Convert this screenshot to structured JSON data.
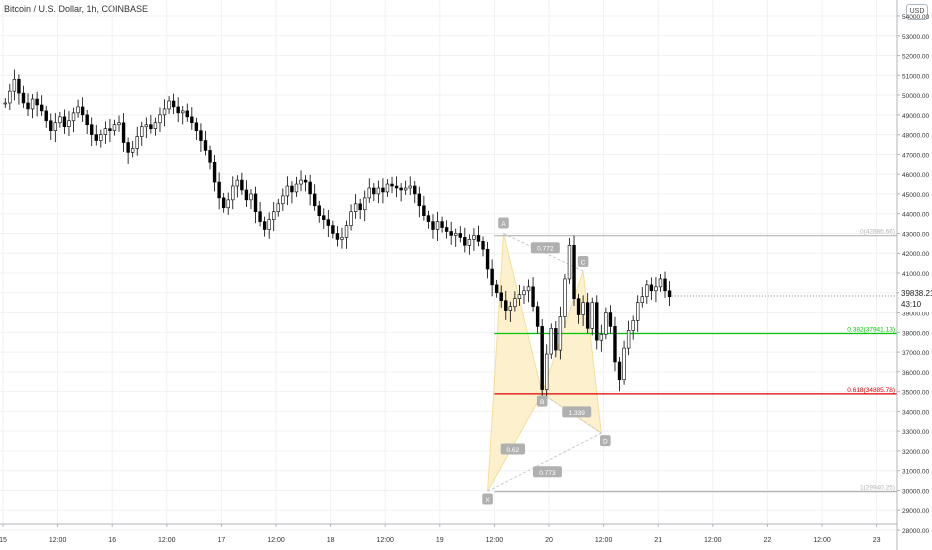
{
  "header": {
    "title": "Bitcoin / U.S. Dollar, 1h, COINBASE",
    "currency_button": "USD"
  },
  "price_badge": {
    "price": "39838.21",
    "countdown": "43:10"
  },
  "chart_data": {
    "type": "candlestick",
    "title": "Bitcoin / U.S. Dollar, 1h, COINBASE",
    "ylim": [
      27800,
      54700
    ],
    "y_ticks": [
      28000,
      29000,
      30000,
      31000,
      32000,
      33000,
      34000,
      35000,
      36000,
      37000,
      38000,
      39000,
      40000,
      41000,
      42000,
      43000,
      44000,
      45000,
      46000,
      47000,
      48000,
      49000,
      50000,
      51000,
      52000,
      53000,
      54000
    ],
    "y_tick_labels": [
      "28000.00",
      "29000.00",
      "30000.00",
      "31000.00",
      "32000.00",
      "33000.00",
      "34000.00",
      "35000.00",
      "36000.00",
      "37000.00",
      "38000.00",
      "39000.00",
      "40000.00",
      "41000.00",
      "42000.00",
      "43000.00",
      "44000.00",
      "45000.00",
      "46000.00",
      "47000.00",
      "48000.00",
      "49000.00",
      "50000.00",
      "51000.00",
      "52000.00",
      "53000.00",
      "54000.00"
    ],
    "x_ticks": [
      {
        "label": "15",
        "t": 0
      },
      {
        "label": "12:00",
        "t": 12
      },
      {
        "label": "16",
        "t": 24
      },
      {
        "label": "12:00",
        "t": 36
      },
      {
        "label": "17",
        "t": 48
      },
      {
        "label": "12:00",
        "t": 60
      },
      {
        "label": "18",
        "t": 72
      },
      {
        "label": "12:00",
        "t": 84
      },
      {
        "label": "19",
        "t": 96
      },
      {
        "label": "12:00",
        "t": 108
      },
      {
        "label": "20",
        "t": 120
      },
      {
        "label": "12:00",
        "t": 132
      },
      {
        "label": "21",
        "t": 144
      },
      {
        "label": "12:00",
        "t": 156
      },
      {
        "label": "22",
        "t": 168
      },
      {
        "label": "12:00",
        "t": 180
      },
      {
        "label": "23",
        "t": 192
      }
    ],
    "t_range": [
      0,
      196
    ],
    "candles_hourly_close_approx": [
      49600,
      50200,
      50800,
      50100,
      49600,
      49300,
      49800,
      49500,
      49200,
      48700,
      48200,
      48600,
      48900,
      48400,
      48700,
      49100,
      49400,
      49000,
      48500,
      48000,
      47700,
      48000,
      48300,
      48200,
      48500,
      48600,
      47600,
      47100,
      47300,
      47900,
      48400,
      48500,
      48300,
      48600,
      49000,
      49300,
      49700,
      49400,
      49100,
      49200,
      48900,
      48600,
      48200,
      47700,
      47200,
      46600,
      45600,
      44800,
      44300,
      44700,
      45400,
      45700,
      45200,
      44700,
      45000,
      44100,
      43600,
      43200,
      43700,
      44100,
      44500,
      44900,
      45400,
      45100,
      45500,
      45700,
      45600,
      45000,
      44400,
      43900,
      43700,
      43400,
      43000,
      42700,
      42800,
      43400,
      44100,
      44500,
      44200,
      44800,
      45300,
      45000,
      45300,
      45100,
      45500,
      45400,
      45300,
      45200,
      45300,
      45400,
      45000,
      44400,
      43900,
      43600,
      43200,
      43600,
      43300,
      43100,
      42900,
      43000,
      42800,
      42400,
      42700,
      42900,
      42600,
      42200,
      41200,
      40400,
      40000,
      39600,
      39100,
      39300,
      39700,
      39900,
      40100,
      40300,
      39300,
      38300,
      35100,
      36900,
      38200,
      37100,
      38800,
      40700,
      42400,
      39700,
      38900,
      39500,
      38200,
      39500,
      37600,
      37900,
      39000,
      38300,
      36500,
      35600,
      37200,
      38100,
      38600,
      39500,
      39800,
      40400,
      40100,
      40300,
      40700,
      40100,
      39800
    ],
    "harmonic_pattern": {
      "type": "XABCD",
      "points": [
        {
          "label": "X",
          "t": 106.5,
          "price": 29950
        },
        {
          "label": "A",
          "t": 110,
          "price": 43000
        },
        {
          "label": "B",
          "t": 118.5,
          "price": 34900
        },
        {
          "label": "C",
          "t": 127.5,
          "price": 41100
        },
        {
          "label": "D",
          "t": 131.5,
          "price": 32900
        }
      ],
      "ratios": [
        {
          "label": "0.772",
          "between": "AC"
        },
        {
          "label": "1.339",
          "between": "BD"
        },
        {
          "label": "0.62",
          "between": "XB"
        },
        {
          "label": "0.773",
          "between": "XD"
        }
      ]
    },
    "fib_levels": [
      {
        "label": "0(42886.66)",
        "price": 42886.66,
        "color": "#b5b5b5"
      },
      {
        "label": "0.382(37941.13)",
        "price": 37941.13,
        "color": "#00c800"
      },
      {
        "label": "0.618(34885.78)",
        "price": 34885.78,
        "color": "#e00000"
      },
      {
        "label": "1(29940.25)",
        "price": 29940.25,
        "color": "#b5b5b5"
      }
    ],
    "current_price": 39838.21,
    "colors": {
      "candle_up": "#ffffff",
      "candle_down": "#000000",
      "pattern_fill": "#fcefc4",
      "pattern_stroke": "#f2d98a"
    }
  }
}
